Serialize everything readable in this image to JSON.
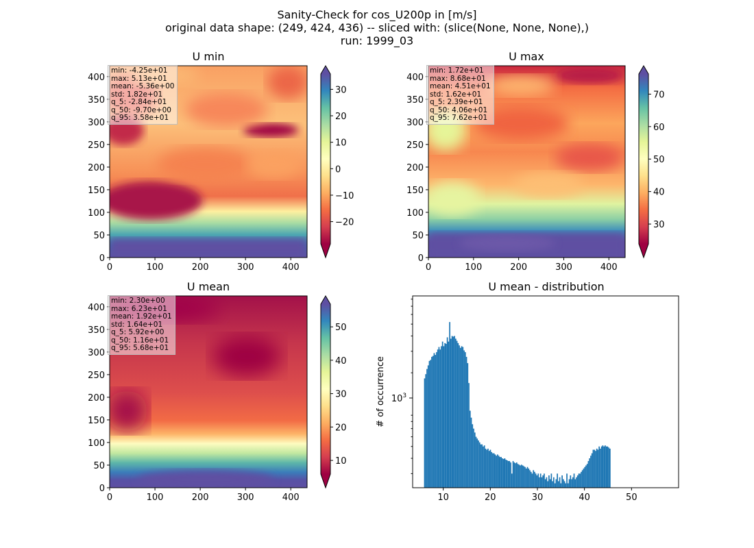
{
  "title_lines": [
    "Sanity-Check for cos_U200p in [m/s]",
    "original data shape: (249, 424, 436) -- sliced with: (slice(None, None, None),)",
    "run: 1999_03"
  ],
  "panels": [
    {
      "id": "umin",
      "title": "U min",
      "cmap": "Spectral",
      "xticks": [
        "0",
        "100",
        "200",
        "300",
        "400"
      ],
      "yticks": [
        "0",
        "50",
        "100",
        "150",
        "200",
        "250",
        "300",
        "350",
        "400"
      ],
      "cbar_ticks": [
        "−20",
        "−10",
        "0",
        "10",
        "20",
        "30"
      ],
      "cbar_range": [
        -28.4,
        35.8
      ],
      "stats": [
        "min: -4.25e+01",
        "max: 5.13e+01",
        "mean: -5.36e+00",
        "std: 1.82e+01",
        "q_5: -2.84e+01",
        "q_50: -9.70e+00",
        "q_95: 3.58e+01"
      ]
    },
    {
      "id": "umax",
      "title": "U max",
      "cmap": "Spectral",
      "xticks": [
        "0",
        "100",
        "200",
        "300",
        "400"
      ],
      "yticks": [
        "0",
        "50",
        "100",
        "150",
        "200",
        "250",
        "300",
        "350",
        "400"
      ],
      "cbar_ticks": [
        "30",
        "40",
        "50",
        "60",
        "70"
      ],
      "cbar_range": [
        23.9,
        76.2
      ],
      "stats": [
        "min: 1.72e+01",
        "max: 8.68e+01",
        "mean: 4.51e+01",
        "std: 1.62e+01",
        "q_5: 2.39e+01",
        "q_50: 4.06e+01",
        "q_95: 7.62e+01"
      ]
    },
    {
      "id": "umean",
      "title": "U mean",
      "cmap": "Spectral",
      "xticks": [
        "0",
        "100",
        "200",
        "300",
        "400"
      ],
      "yticks": [
        "0",
        "50",
        "100",
        "150",
        "200",
        "250",
        "300",
        "350",
        "400"
      ],
      "cbar_ticks": [
        "10",
        "20",
        "30",
        "40",
        "50"
      ],
      "cbar_range": [
        5.92,
        56.8
      ],
      "stats": [
        "min: 2.30e+00",
        "max: 6.23e+01",
        "mean: 1.92e+01",
        "std: 1.64e+01",
        "q_5: 5.92e+00",
        "q_50: 1.16e+01",
        "q_95: 5.68e+01"
      ]
    }
  ],
  "chart_data": {
    "type": "bar",
    "title": "U mean - distribution",
    "xlabel": "",
    "ylabel": "# of occurrence",
    "yscale": "log",
    "xlim": [
      3.5,
      60.0
    ],
    "ylim": [
      230,
      8500
    ],
    "xticks": [
      "10",
      "20",
      "30",
      "40",
      "50"
    ],
    "ytick_label": "10",
    "ytick_exp": "3",
    "bin_start": 5.92,
    "bin_width": 0.254,
    "counts": [
      1800,
      1950,
      2150,
      2300,
      2500,
      2550,
      2700,
      2750,
      2900,
      2800,
      2950,
      3100,
      3250,
      3100,
      3300,
      3600,
      3300,
      3500,
      3450,
      3900,
      3600,
      5200,
      3800,
      4000,
      3950,
      4000,
      3800,
      3650,
      3500,
      3350,
      3200,
      3300,
      3250,
      3050,
      2950,
      2700,
      2400,
      1650,
      980,
      860,
      760,
      700,
      650,
      600,
      580,
      560,
      540,
      520,
      520,
      500,
      510,
      480,
      470,
      480,
      460,
      470,
      450,
      440,
      440,
      430,
      420,
      430,
      420,
      410,
      410,
      400,
      395,
      400,
      390,
      385,
      380,
      380,
      370,
      300,
      380,
      370,
      365,
      370,
      360,
      355,
      350,
      355,
      350,
      345,
      340,
      330,
      340,
      330,
      320,
      310,
      300,
      320,
      310,
      300,
      290,
      300,
      280,
      300,
      280,
      290,
      300,
      270,
      280,
      260,
      290,
      270,
      300,
      260,
      280,
      250,
      270,
      300,
      260,
      280,
      250,
      290,
      270,
      260,
      250,
      300,
      250,
      270,
      290,
      270,
      280,
      300,
      270,
      280,
      290,
      300,
      300,
      310,
      320,
      330,
      340,
      350,
      360,
      380,
      400,
      420,
      440,
      470,
      470,
      460,
      480,
      470,
      500,
      480,
      500,
      510,
      500,
      510,
      500,
      500,
      490,
      480
    ]
  },
  "colors": {
    "bar": "#1f77b4",
    "axis": "#000000",
    "stats_border": "#bdbdbd"
  }
}
